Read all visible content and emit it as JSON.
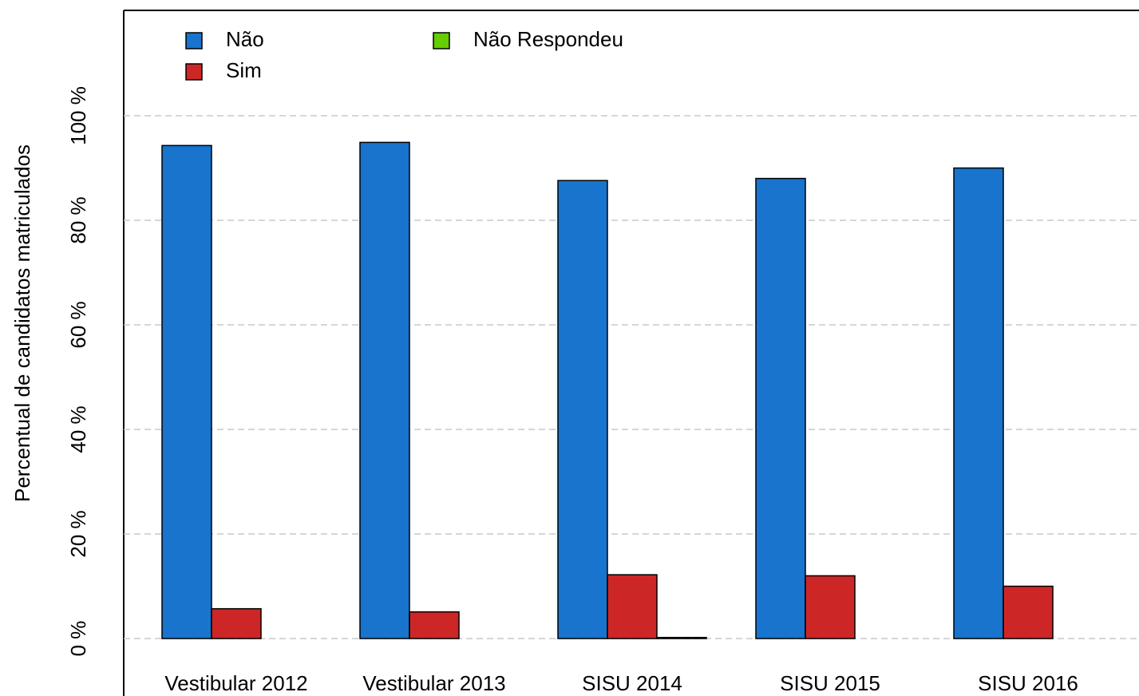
{
  "chart_data": {
    "type": "bar",
    "y_label": "Percentual de candidatos matriculados",
    "categories": [
      "Vestibular 2012",
      "Vestibular 2013",
      "SISU 2014",
      "SISU 2015",
      "SISU 2016"
    ],
    "series": [
      {
        "name": "Não",
        "color": "#1874cd",
        "values": [
          94.3,
          94.9,
          87.6,
          88.0,
          90.0
        ]
      },
      {
        "name": "Sim",
        "color": "#cd2626",
        "values": [
          5.7,
          5.1,
          12.2,
          12.0,
          10.0
        ]
      },
      {
        "name": "Não Respondeu",
        "color": "#66cd00",
        "values": [
          0,
          0,
          0.2,
          0,
          0
        ]
      }
    ],
    "ylim": [
      0,
      120
    ],
    "yticks": [
      {
        "value": 0,
        "label": "0 %"
      },
      {
        "value": 20,
        "label": "20 %"
      },
      {
        "value": 40,
        "label": "40 %"
      },
      {
        "value": 60,
        "label": "60 %"
      },
      {
        "value": 80,
        "label": "80 %"
      },
      {
        "value": 100,
        "label": "100 %"
      }
    ],
    "grid": true,
    "legend": "top-left"
  }
}
